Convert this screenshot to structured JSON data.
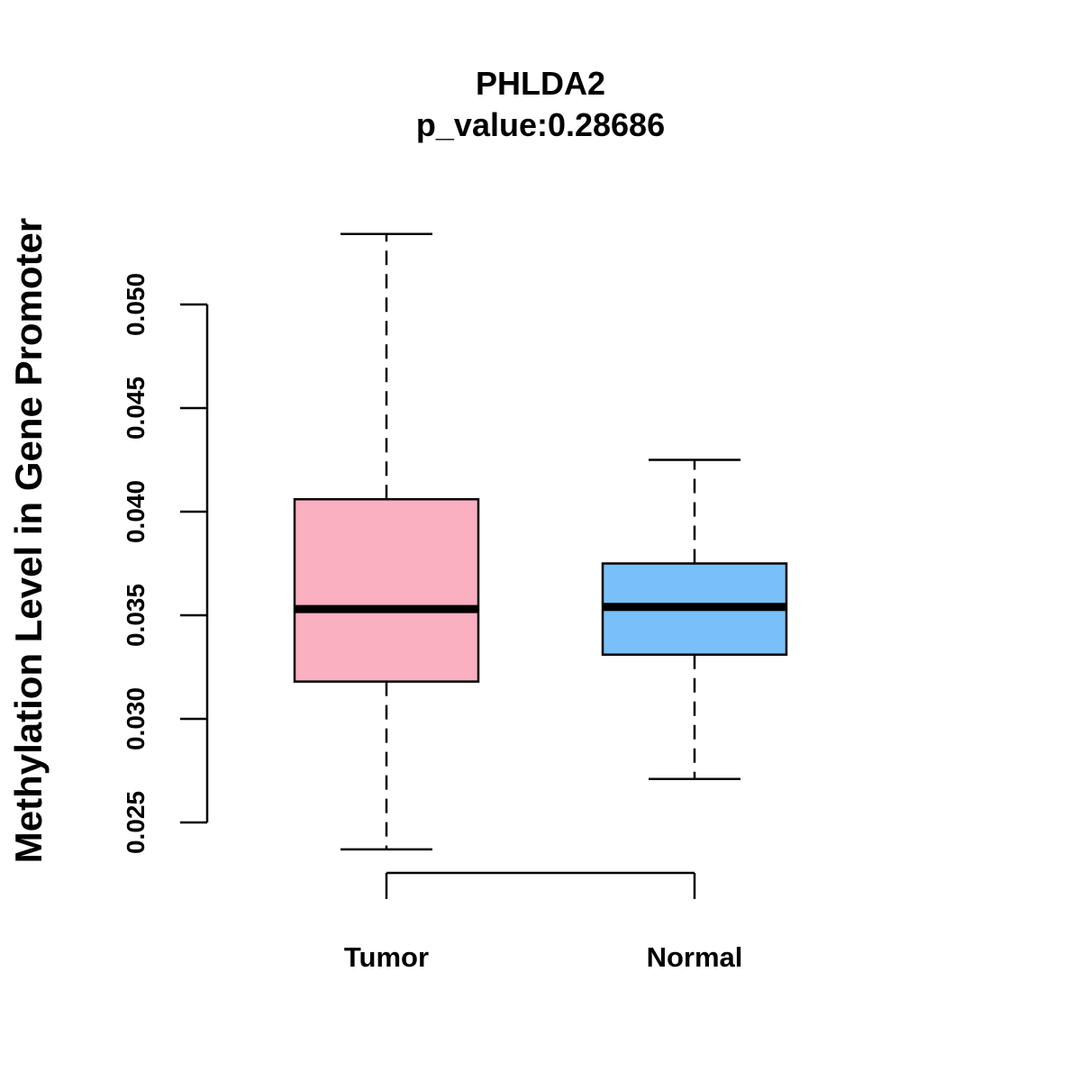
{
  "chart_data": {
    "type": "boxplot",
    "title": "PHLDA2",
    "subtitle": "p_value:0.28686",
    "ylabel": "Methylation Level in Gene Promoter",
    "xlabel": "",
    "ylim": [
      0.025,
      0.05
    ],
    "yticks": [
      "0.025",
      "0.030",
      "0.035",
      "0.040",
      "0.045",
      "0.050"
    ],
    "categories": [
      "Tumor",
      "Normal"
    ],
    "series": [
      {
        "category": "Tumor",
        "min": 0.0237,
        "q1": 0.0318,
        "median": 0.0353,
        "q3": 0.0406,
        "max": 0.0534,
        "color": "#fbb0c2"
      },
      {
        "category": "Normal",
        "min": 0.0271,
        "q1": 0.0331,
        "median": 0.0354,
        "q3": 0.0375,
        "max": 0.0425,
        "color": "#78c0f8"
      }
    ],
    "grid": false,
    "legend": "none"
  }
}
